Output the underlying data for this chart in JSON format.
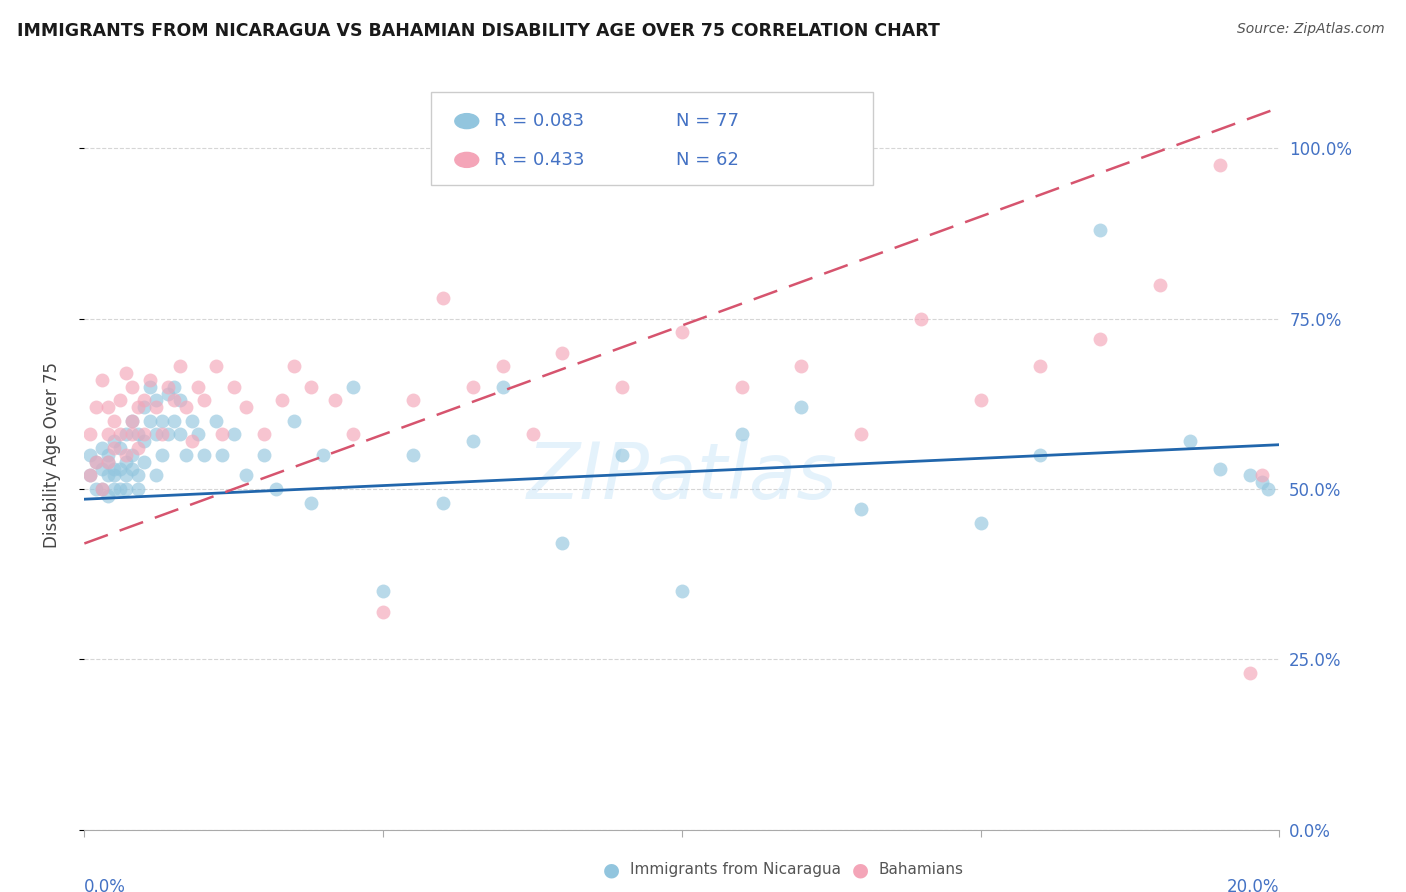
{
  "title": "IMMIGRANTS FROM NICARAGUA VS BAHAMIAN DISABILITY AGE OVER 75 CORRELATION CHART",
  "source": "Source: ZipAtlas.com",
  "ylabel": "Disability Age Over 75",
  "right_yticklabels": [
    "0.0%",
    "25.0%",
    "50.0%",
    "75.0%",
    "100.0%"
  ],
  "right_ytick_vals": [
    0.0,
    0.25,
    0.5,
    0.75,
    1.0
  ],
  "blue_color": "#92c5de",
  "pink_color": "#f4a5b8",
  "line_blue": "#2166ac",
  "line_pink": "#d6546e",
  "watermark": "ZIPatlas",
  "blue_r": 0.083,
  "blue_n": 77,
  "pink_r": 0.433,
  "pink_n": 62,
  "xlim": [
    0.0,
    0.2
  ],
  "ylim": [
    0.0,
    1.1
  ],
  "axis_label_color": "#4472c4",
  "title_color": "#1a1a1a",
  "source_color": "#555555",
  "background_color": "#ffffff",
  "blue_scatter_x": [
    0.001,
    0.001,
    0.002,
    0.002,
    0.003,
    0.003,
    0.003,
    0.004,
    0.004,
    0.004,
    0.004,
    0.005,
    0.005,
    0.005,
    0.005,
    0.006,
    0.006,
    0.006,
    0.007,
    0.007,
    0.007,
    0.007,
    0.008,
    0.008,
    0.008,
    0.009,
    0.009,
    0.009,
    0.01,
    0.01,
    0.01,
    0.011,
    0.011,
    0.012,
    0.012,
    0.012,
    0.013,
    0.013,
    0.014,
    0.014,
    0.015,
    0.015,
    0.016,
    0.016,
    0.017,
    0.018,
    0.019,
    0.02,
    0.022,
    0.023,
    0.025,
    0.027,
    0.03,
    0.032,
    0.035,
    0.038,
    0.04,
    0.045,
    0.05,
    0.055,
    0.06,
    0.065,
    0.07,
    0.08,
    0.09,
    0.1,
    0.11,
    0.12,
    0.13,
    0.15,
    0.16,
    0.17,
    0.185,
    0.19,
    0.195,
    0.197,
    0.198
  ],
  "blue_scatter_y": [
    0.52,
    0.55,
    0.5,
    0.54,
    0.53,
    0.5,
    0.56,
    0.52,
    0.55,
    0.49,
    0.54,
    0.53,
    0.57,
    0.5,
    0.52,
    0.56,
    0.53,
    0.5,
    0.58,
    0.54,
    0.52,
    0.5,
    0.6,
    0.55,
    0.53,
    0.58,
    0.52,
    0.5,
    0.62,
    0.57,
    0.54,
    0.65,
    0.6,
    0.63,
    0.58,
    0.52,
    0.6,
    0.55,
    0.64,
    0.58,
    0.65,
    0.6,
    0.63,
    0.58,
    0.55,
    0.6,
    0.58,
    0.55,
    0.6,
    0.55,
    0.58,
    0.52,
    0.55,
    0.5,
    0.6,
    0.48,
    0.55,
    0.65,
    0.35,
    0.55,
    0.48,
    0.57,
    0.65,
    0.42,
    0.55,
    0.35,
    0.58,
    0.62,
    0.47,
    0.45,
    0.55,
    0.88,
    0.57,
    0.53,
    0.52,
    0.51,
    0.5
  ],
  "pink_scatter_x": [
    0.001,
    0.001,
    0.002,
    0.002,
    0.003,
    0.003,
    0.004,
    0.004,
    0.004,
    0.005,
    0.005,
    0.006,
    0.006,
    0.007,
    0.007,
    0.008,
    0.008,
    0.008,
    0.009,
    0.009,
    0.01,
    0.01,
    0.011,
    0.012,
    0.013,
    0.014,
    0.015,
    0.016,
    0.017,
    0.018,
    0.019,
    0.02,
    0.022,
    0.023,
    0.025,
    0.027,
    0.03,
    0.033,
    0.035,
    0.038,
    0.042,
    0.045,
    0.05,
    0.055,
    0.06,
    0.065,
    0.07,
    0.075,
    0.08,
    0.09,
    0.1,
    0.11,
    0.12,
    0.13,
    0.14,
    0.15,
    0.16,
    0.17,
    0.18,
    0.19,
    0.195,
    0.197
  ],
  "pink_scatter_y": [
    0.52,
    0.58,
    0.54,
    0.62,
    0.5,
    0.66,
    0.58,
    0.54,
    0.62,
    0.56,
    0.6,
    0.63,
    0.58,
    0.55,
    0.67,
    0.6,
    0.65,
    0.58,
    0.62,
    0.56,
    0.63,
    0.58,
    0.66,
    0.62,
    0.58,
    0.65,
    0.63,
    0.68,
    0.62,
    0.57,
    0.65,
    0.63,
    0.68,
    0.58,
    0.65,
    0.62,
    0.58,
    0.63,
    0.68,
    0.65,
    0.63,
    0.58,
    0.32,
    0.63,
    0.78,
    0.65,
    0.68,
    0.58,
    0.7,
    0.65,
    0.73,
    0.65,
    0.68,
    0.58,
    0.75,
    0.63,
    0.68,
    0.72,
    0.8,
    0.975,
    0.23,
    0.52
  ]
}
